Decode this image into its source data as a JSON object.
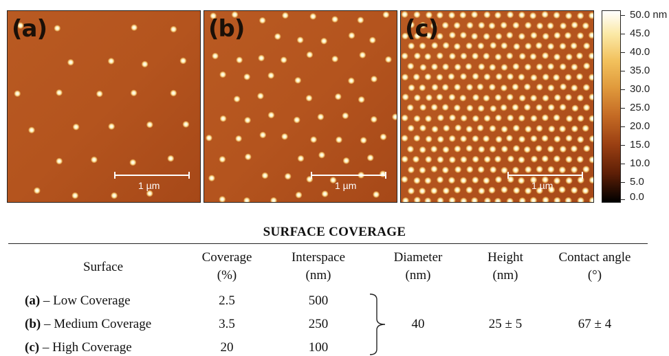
{
  "panels": [
    {
      "letter": "(a)",
      "scale": "1 µm",
      "density": "low"
    },
    {
      "letter": "(b)",
      "scale": "1 µm",
      "density": "medium"
    },
    {
      "letter": "(c)",
      "scale": "1 µm",
      "density": "high"
    }
  ],
  "colorbar": {
    "labels": [
      "50.0 nm",
      "45.0",
      "40.0",
      "35.0",
      "30.0",
      "25.0",
      "20.0",
      "15.0",
      "10.0",
      "5.0",
      "0.0"
    ]
  },
  "table": {
    "title": "SURFACE COVERAGE",
    "headers": {
      "surface": "Surface",
      "coverage": [
        "Coverage",
        "(%)"
      ],
      "interspace": [
        "Interspace",
        "(nm)"
      ],
      "diameter": [
        "Diameter",
        "(nm)"
      ],
      "height": [
        "Height",
        "(nm)"
      ],
      "contact": [
        "Contact angle",
        "(°)"
      ]
    },
    "rows": [
      {
        "id": "(a)",
        "name": "– Low Coverage",
        "coverage": "2.5",
        "interspace": "500"
      },
      {
        "id": "(b)",
        "name": "– Medium Coverage",
        "coverage": "3.5",
        "interspace": "250"
      },
      {
        "id": "(c)",
        "name": "– High Coverage",
        "coverage": "20",
        "interspace": "100"
      }
    ],
    "shared": {
      "diameter": "40",
      "height": "25 ± 5",
      "contact": "67 ± 4"
    }
  },
  "colors": {
    "substrate": "#b4541e",
    "dot": "#fff3c4"
  }
}
